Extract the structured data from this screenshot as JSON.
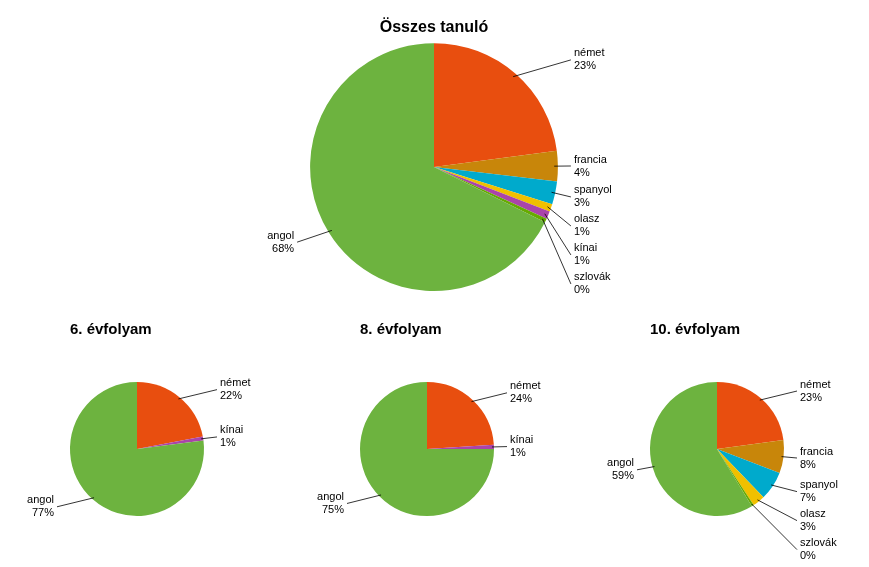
{
  "chart_data": [
    {
      "type": "pie",
      "title": "Összes tanuló",
      "categories": [
        "német",
        "francia",
        "spanyol",
        "olasz",
        "kínai",
        "szlovák",
        "angol"
      ],
      "values": [
        23,
        4,
        3,
        1,
        1,
        0.5,
        68
      ],
      "value_labels": [
        "23%",
        "4%",
        "3%",
        "1%",
        "1%",
        "0%",
        "68%"
      ],
      "colors": [
        "#E84E0F",
        "#C8860A",
        "#00AACC",
        "#F0C000",
        "#AA44AA",
        "#66AA00",
        "#6DB33F"
      ],
      "data_labels": true
    },
    {
      "type": "pie",
      "title": "6. évfolyam",
      "categories": [
        "német",
        "kínai",
        "angol"
      ],
      "values": [
        22,
        1,
        77
      ],
      "value_labels": [
        "22%",
        "1%",
        "77%"
      ],
      "colors": [
        "#E84E0F",
        "#AA44AA",
        "#6DB33F"
      ],
      "data_labels": true
    },
    {
      "type": "pie",
      "title": "8. évfolyam",
      "categories": [
        "német",
        "kínai",
        "angol"
      ],
      "values": [
        24,
        1,
        75
      ],
      "value_labels": [
        "24%",
        "1%",
        "75%"
      ],
      "colors": [
        "#E84E0F",
        "#AA44AA",
        "#6DB33F"
      ],
      "data_labels": true
    },
    {
      "type": "pie",
      "title": "10. évfolyam",
      "categories": [
        "német",
        "francia",
        "spanyol",
        "olasz",
        "szlovák",
        "angol"
      ],
      "values": [
        23,
        8,
        7,
        3,
        0.5,
        59
      ],
      "value_labels": [
        "23%",
        "8%",
        "7%",
        "3%",
        "0%",
        "59%"
      ],
      "colors": [
        "#E84E0F",
        "#C8860A",
        "#00AACC",
        "#F0C000",
        "#66AA00",
        "#6DB33F"
      ],
      "data_labels": true
    }
  ]
}
